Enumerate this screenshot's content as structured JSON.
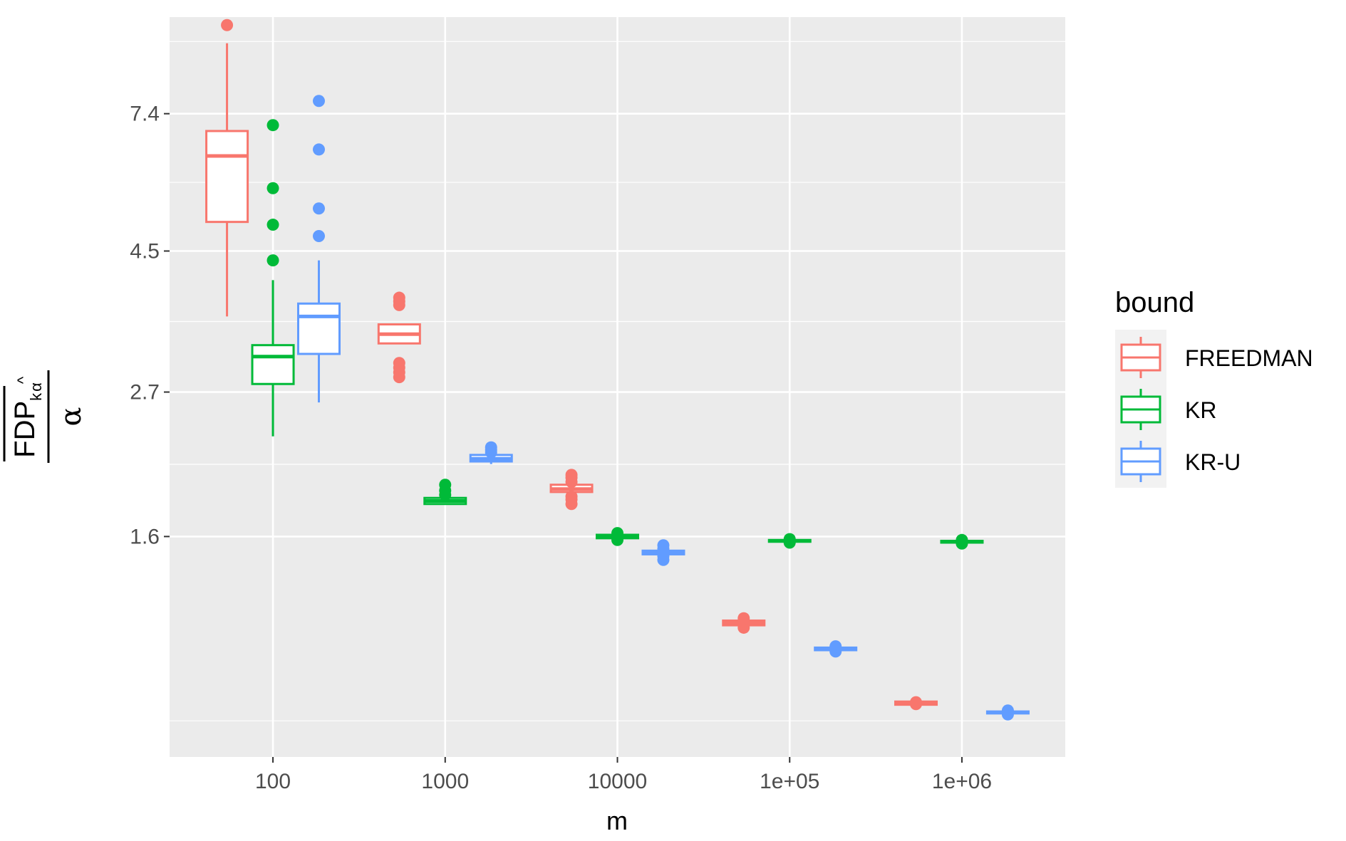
{
  "chart_data": {
    "type": "boxplot",
    "xlabel": "m",
    "ylabel": {
      "numerator_text": "FDP",
      "numerator_subscript": "k",
      "numerator_hat": "^",
      "numerator_sub_subscript": "α",
      "denominator": "α"
    },
    "y_scale": "log",
    "y_ticks": [
      "1.6",
      "2.7",
      "4.5",
      "7.4"
    ],
    "y_tick_values": [
      1.6,
      2.7,
      4.5,
      7.4
    ],
    "ylim": [
      0.72,
      10.5
    ],
    "categories": [
      "100",
      "1000",
      "10000",
      "1e+05",
      "1e+06"
    ],
    "grid": true,
    "legend": {
      "title": "bound",
      "position": "right",
      "entries": [
        "FREEDMAN",
        "KR",
        "KR-U"
      ]
    },
    "colors": {
      "FREEDMAN": "#F8766D",
      "KR": "#00BA38",
      "KR-U": "#619CFF"
    },
    "series": [
      {
        "name": "FREEDMAN",
        "boxes": [
          {
            "category": "100",
            "lower_whisker": 3.55,
            "q1": 5.0,
            "median": 6.35,
            "q3": 6.95,
            "upper_whisker": 9.55,
            "outliers": [
              10.2
            ]
          },
          {
            "category": "1000",
            "lower_whisker": 3.22,
            "q1": 3.22,
            "median": 3.33,
            "q3": 3.45,
            "upper_whisker": 3.45,
            "outliers": [
              2.85,
              2.9,
              2.95,
              3.0,
              3.7,
              3.75,
              3.8
            ]
          },
          {
            "category": "10000",
            "lower_whisker": 1.88,
            "q1": 1.88,
            "median": 1.9,
            "q3": 1.93,
            "upper_whisker": 1.93,
            "outliers": [
              1.8,
              1.83,
              1.85,
              1.95,
              1.98,
              2.0
            ]
          },
          {
            "category": "1e+05",
            "lower_whisker": 1.16,
            "q1": 1.16,
            "median": 1.17,
            "q3": 1.18,
            "upper_whisker": 1.18,
            "outliers": [
              1.15,
              1.19
            ]
          },
          {
            "category": "1e+06",
            "lower_whisker": 0.87,
            "q1": 0.87,
            "median": 0.875,
            "q3": 0.88,
            "upper_whisker": 0.88,
            "outliers": [
              0.872,
              0.878
            ]
          }
        ]
      },
      {
        "name": "KR",
        "boxes": [
          {
            "category": "100",
            "lower_whisker": 2.3,
            "q1": 2.78,
            "median": 3.07,
            "q3": 3.2,
            "upper_whisker": 4.05,
            "outliers": [
              4.35,
              4.95,
              5.65,
              7.1
            ]
          },
          {
            "category": "1000",
            "lower_whisker": 1.8,
            "q1": 1.8,
            "median": 1.82,
            "q3": 1.84,
            "upper_whisker": 1.84,
            "outliers": [
              1.86,
              1.89,
              1.93
            ]
          },
          {
            "category": "10000",
            "lower_whisker": 1.59,
            "q1": 1.59,
            "median": 1.6,
            "q3": 1.61,
            "upper_whisker": 1.61,
            "outliers": [
              1.58,
              1.62
            ]
          },
          {
            "category": "1e+05",
            "lower_whisker": 1.57,
            "q1": 1.57,
            "median": 1.575,
            "q3": 1.58,
            "upper_whisker": 1.58,
            "outliers": [
              1.565,
              1.585
            ]
          },
          {
            "category": "1e+06",
            "lower_whisker": 1.565,
            "q1": 1.565,
            "median": 1.57,
            "q3": 1.575,
            "upper_whisker": 1.575,
            "outliers": [
              1.56,
              1.58
            ]
          }
        ]
      },
      {
        "name": "KR-U",
        "boxes": [
          {
            "category": "100",
            "lower_whisker": 2.6,
            "q1": 3.1,
            "median": 3.55,
            "q3": 3.72,
            "upper_whisker": 4.35,
            "outliers": [
              4.75,
              5.25,
              6.5,
              7.75
            ]
          },
          {
            "category": "1000",
            "lower_whisker": 2.08,
            "q1": 2.1,
            "median": 2.12,
            "q3": 2.15,
            "upper_whisker": 2.16,
            "outliers": [
              2.17,
              2.19,
              2.21
            ]
          },
          {
            "category": "10000",
            "lower_whisker": 1.5,
            "q1": 1.5,
            "median": 1.51,
            "q3": 1.52,
            "upper_whisker": 1.52,
            "outliers": [
              1.47,
              1.49,
              1.53,
              1.55
            ]
          },
          {
            "category": "1e+05",
            "lower_whisker": 1.06,
            "q1": 1.06,
            "median": 1.065,
            "q3": 1.07,
            "upper_whisker": 1.07,
            "outliers": [
              1.055,
              1.075
            ]
          },
          {
            "category": "1e+06",
            "lower_whisker": 0.843,
            "q1": 0.843,
            "median": 0.846,
            "q3": 0.849,
            "upper_whisker": 0.849,
            "outliers": [
              0.84,
              0.852
            ]
          }
        ]
      }
    ]
  }
}
